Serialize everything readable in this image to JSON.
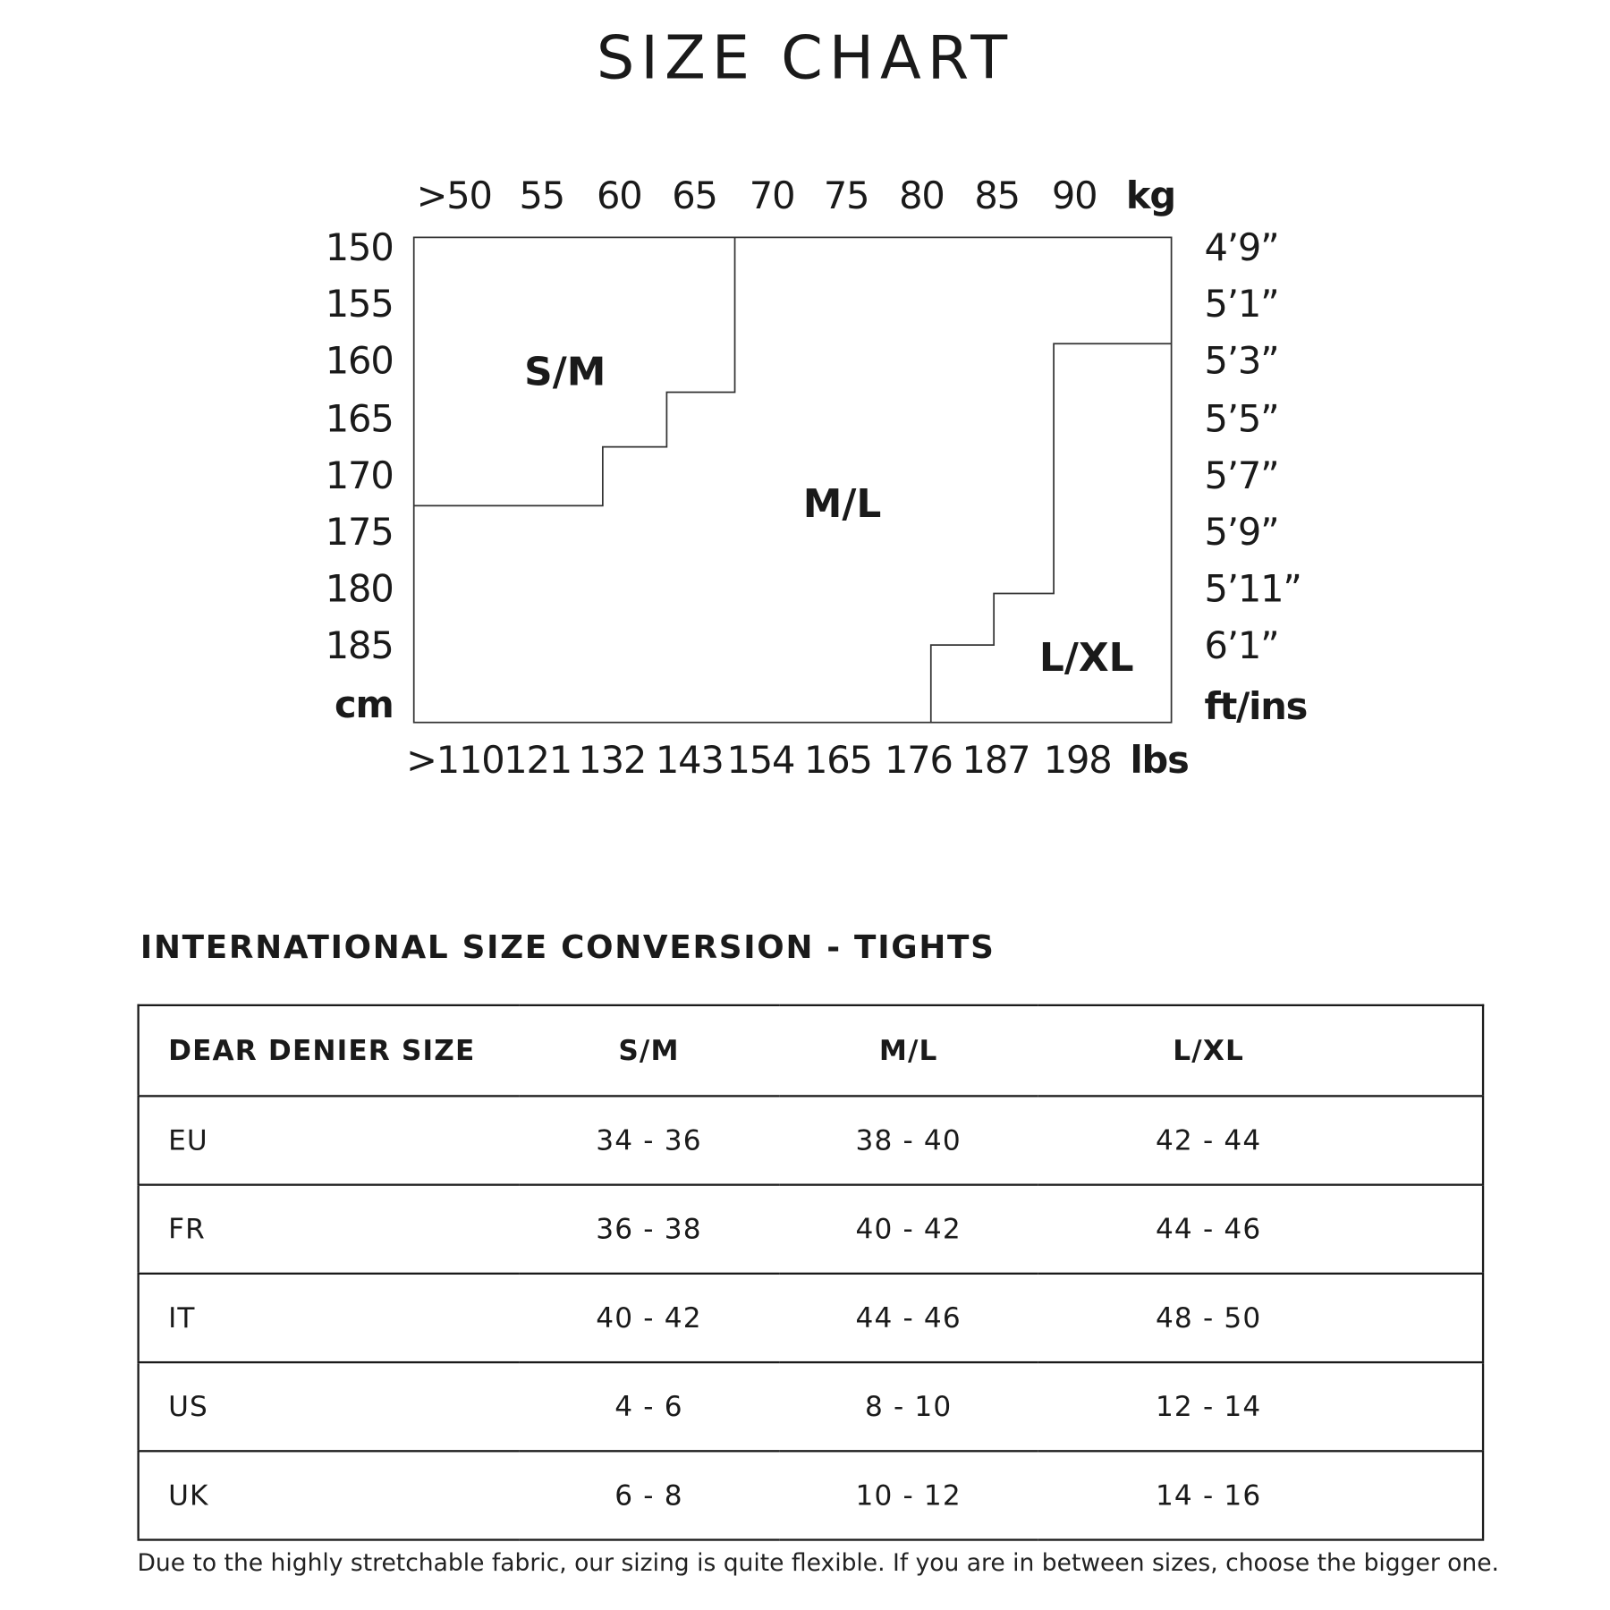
{
  "title": "SIZE CHART",
  "chart_data": {
    "type": "diagram",
    "title": "SIZE CHART",
    "x_top": {
      "ticks": [
        ">50",
        "55",
        "60",
        "65",
        "70",
        "75",
        "80",
        "85",
        "90"
      ],
      "unit": "kg"
    },
    "x_bottom": {
      "ticks": [
        ">110",
        "121",
        "132",
        "143",
        "154",
        "165",
        "176",
        "187",
        "198"
      ],
      "unit": "lbs"
    },
    "y_left": {
      "ticks": [
        "150",
        "155",
        "160",
        "165",
        "170",
        "175",
        "180",
        "185"
      ],
      "unit": "cm"
    },
    "y_right": {
      "ticks": [
        "4’9”",
        "5’1”",
        "5’3”",
        "5’5”",
        "5’7”",
        "5’9”",
        "5’11”",
        "6’1”"
      ],
      "unit": "ft/ins"
    },
    "regions": [
      "S/M",
      "M/L",
      "L/XL"
    ],
    "line_color": "#333333"
  },
  "table": {
    "subtitle": "INTERNATIONAL SIZE CONVERSION - TIGHTS",
    "headers": [
      "DEAR DENIER SIZE",
      "S/M",
      "M/L",
      "L/XL"
    ],
    "rows": [
      [
        "EU",
        "34 - 36",
        "38 - 40",
        "42 - 44"
      ],
      [
        "FR",
        "36 - 38",
        "40 - 42",
        "44 - 46"
      ],
      [
        "IT",
        "40 - 42",
        "44 - 46",
        "48 - 50"
      ],
      [
        "US",
        "4 - 6",
        "8 - 10",
        "12 - 14"
      ],
      [
        "UK",
        "6 - 8",
        "10 - 12",
        "14 - 16"
      ]
    ]
  },
  "footnote": "Due to the highly stretchable fabric, our sizing is quite flexible. If you are in between sizes, choose the bigger one."
}
